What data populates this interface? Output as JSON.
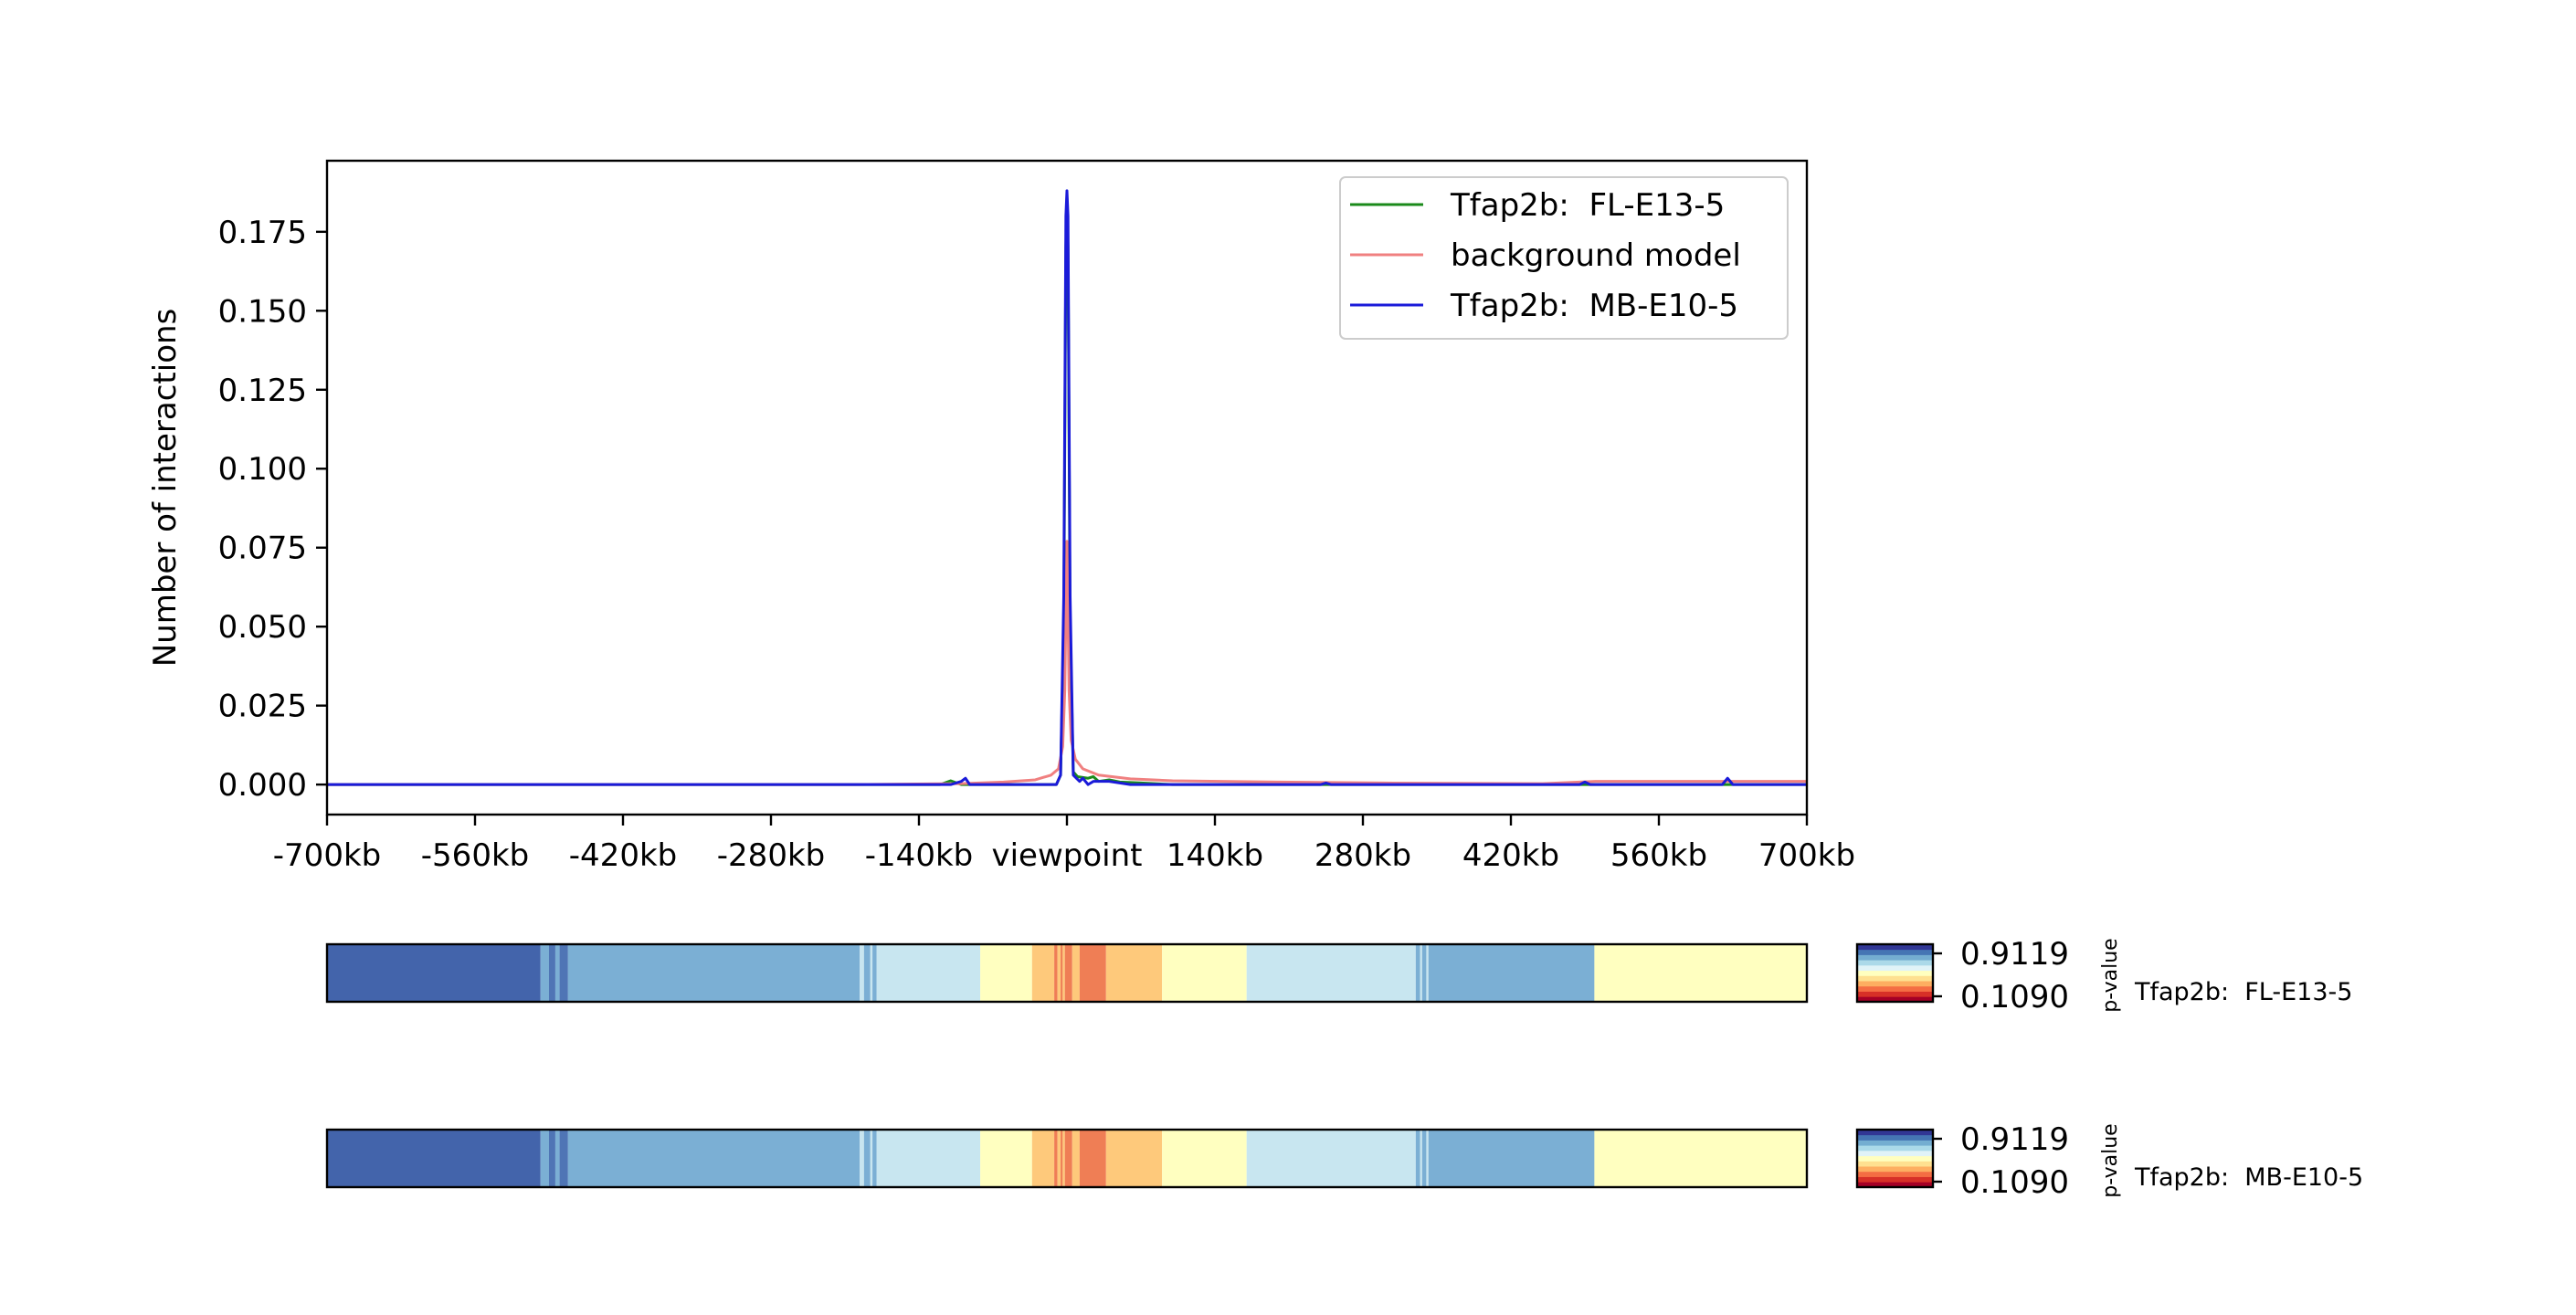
{
  "chart_data": [
    {
      "type": "line",
      "title": "",
      "ylabel": "Number of interactions",
      "xlabel": "",
      "xlim": [
        -700,
        700
      ],
      "ylim": [
        -0.0095,
        0.1975
      ],
      "x_ticks": [
        {
          "value": -700,
          "label": "-700kb"
        },
        {
          "value": -560,
          "label": "-560kb"
        },
        {
          "value": -420,
          "label": "-420kb"
        },
        {
          "value": -280,
          "label": "-280kb"
        },
        {
          "value": -140,
          "label": "-140kb"
        },
        {
          "value": 0,
          "label": "viewpoint"
        },
        {
          "value": 140,
          "label": "140kb"
        },
        {
          "value": 280,
          "label": "280kb"
        },
        {
          "value": 420,
          "label": "420kb"
        },
        {
          "value": 560,
          "label": "560kb"
        },
        {
          "value": 700,
          "label": "700kb"
        }
      ],
      "y_ticks": [
        {
          "value": 0.0,
          "label": "0.000"
        },
        {
          "value": 0.025,
          "label": "0.025"
        },
        {
          "value": 0.05,
          "label": "0.050"
        },
        {
          "value": 0.075,
          "label": "0.075"
        },
        {
          "value": 0.1,
          "label": "0.100"
        },
        {
          "value": 0.125,
          "label": "0.125"
        },
        {
          "value": 0.15,
          "label": "0.150"
        },
        {
          "value": 0.175,
          "label": "0.175"
        }
      ],
      "grid": false,
      "legend_position": "top-right",
      "series": [
        {
          "name": "Tfap2b:  FL-E13-5",
          "color": "#1a8a1a",
          "points": [
            [
              -700,
              0
            ],
            [
              -120,
              0
            ],
            [
              -110,
              0.0012
            ],
            [
              -100,
              0
            ],
            [
              -60,
              0
            ],
            [
              -10,
              0
            ],
            [
              -6,
              0.003
            ],
            [
              -3,
              0.05
            ],
            [
              -1,
              0.17
            ],
            [
              0,
              0.186
            ],
            [
              1,
              0.17
            ],
            [
              3,
              0.05
            ],
            [
              6,
              0.004
            ],
            [
              10,
              0.0025
            ],
            [
              20,
              0.002
            ],
            [
              25,
              0.0025
            ],
            [
              30,
              0.001
            ],
            [
              40,
              0.0015
            ],
            [
              50,
              0.0008
            ],
            [
              70,
              0.0005
            ],
            [
              100,
              0
            ],
            [
              700,
              0
            ]
          ]
        },
        {
          "name": "background model",
          "color": "#f08080",
          "points": [
            [
              -700,
              0
            ],
            [
              -200,
              0
            ],
            [
              -100,
              0.0003
            ],
            [
              -60,
              0.0008
            ],
            [
              -30,
              0.0015
            ],
            [
              -15,
              0.003
            ],
            [
              -8,
              0.005
            ],
            [
              -4,
              0.012
            ],
            [
              -2,
              0.03
            ],
            [
              0,
              0.077
            ],
            [
              2,
              0.03
            ],
            [
              4,
              0.014
            ],
            [
              8,
              0.008
            ],
            [
              15,
              0.005
            ],
            [
              30,
              0.003
            ],
            [
              60,
              0.0018
            ],
            [
              100,
              0.0012
            ],
            [
              200,
              0.0008
            ],
            [
              300,
              0.0005
            ],
            [
              450,
              0.0003
            ],
            [
              500,
              0.001
            ],
            [
              700,
              0.001
            ]
          ]
        },
        {
          "name": "Tfap2b:  MB-E10-5",
          "color": "#1a1ad9",
          "points": [
            [
              -700,
              0
            ],
            [
              -110,
              0
            ],
            [
              -100,
              0.001
            ],
            [
              -96,
              0.002
            ],
            [
              -92,
              0
            ],
            [
              -60,
              0
            ],
            [
              -10,
              0
            ],
            [
              -6,
              0.003
            ],
            [
              -3,
              0.06
            ],
            [
              -1,
              0.18
            ],
            [
              0,
              0.188
            ],
            [
              1,
              0.18
            ],
            [
              3,
              0.06
            ],
            [
              6,
              0.003
            ],
            [
              12,
              0.001
            ],
            [
              15,
              0.002
            ],
            [
              20,
              0
            ],
            [
              25,
              0.001
            ],
            [
              40,
              0.001
            ],
            [
              60,
              0
            ],
            [
              240,
              0
            ],
            [
              245,
              0.0005
            ],
            [
              250,
              0
            ],
            [
              485,
              0
            ],
            [
              490,
              0.0008
            ],
            [
              495,
              0
            ],
            [
              620,
              0
            ],
            [
              625,
              0.002
            ],
            [
              630,
              0
            ],
            [
              700,
              0
            ]
          ]
        }
      ]
    },
    {
      "type": "heatmap",
      "name": "Tfap2b:  FL-E13-5",
      "colorbar_ticks": [
        "0.9119",
        "0.1090"
      ],
      "colorbar_label": "p-value",
      "colorbar_colors": [
        "#a50026",
        "#d73027",
        "#f46d43",
        "#fdae61",
        "#fee090",
        "#ffffbf",
        "#e0f3f8",
        "#abd9e9",
        "#74add1",
        "#4575b4",
        "#313695"
      ],
      "segments": [
        {
          "start": -700,
          "end": -498,
          "color": "#4364ab"
        },
        {
          "start": -498,
          "end": -490,
          "color": "#7bafd4"
        },
        {
          "start": -490,
          "end": -484,
          "color": "#4f75b5"
        },
        {
          "start": -484,
          "end": -480,
          "color": "#7bafd4"
        },
        {
          "start": -480,
          "end": -472,
          "color": "#4f75b5"
        },
        {
          "start": -472,
          "end": -196,
          "color": "#7bafd4"
        },
        {
          "start": -196,
          "end": -192,
          "color": "#c8e6f0"
        },
        {
          "start": -192,
          "end": -186,
          "color": "#7bafd4"
        },
        {
          "start": -186,
          "end": -184,
          "color": "#c8e6f0"
        },
        {
          "start": -184,
          "end": -180,
          "color": "#7bafd4"
        },
        {
          "start": -180,
          "end": -82,
          "color": "#c8e6f0"
        },
        {
          "start": -82,
          "end": -33,
          "color": "#ffffc0"
        },
        {
          "start": -33,
          "end": -12,
          "color": "#fec97b"
        },
        {
          "start": -12,
          "end": -9,
          "color": "#ef7e55"
        },
        {
          "start": -9,
          "end": -6,
          "color": "#fec97b"
        },
        {
          "start": -6,
          "end": -4,
          "color": "#ef7e55"
        },
        {
          "start": -4,
          "end": -2,
          "color": "#fec97b"
        },
        {
          "start": -2,
          "end": 5,
          "color": "#ef7e55"
        },
        {
          "start": 5,
          "end": 12,
          "color": "#fec97b"
        },
        {
          "start": 12,
          "end": 37,
          "color": "#ef7e55"
        },
        {
          "start": 37,
          "end": 90,
          "color": "#fec97b"
        },
        {
          "start": 90,
          "end": 170,
          "color": "#ffffc0"
        },
        {
          "start": 170,
          "end": 330,
          "color": "#c8e6f0"
        },
        {
          "start": 330,
          "end": 334,
          "color": "#7bafd4"
        },
        {
          "start": 334,
          "end": 336,
          "color": "#c8e6f0"
        },
        {
          "start": 336,
          "end": 340,
          "color": "#7bafd4"
        },
        {
          "start": 340,
          "end": 342,
          "color": "#c8e6f0"
        },
        {
          "start": 342,
          "end": 499,
          "color": "#7bafd4"
        },
        {
          "start": 499,
          "end": 700,
          "color": "#ffffc0"
        }
      ]
    },
    {
      "type": "heatmap",
      "name": "Tfap2b:  MB-E10-5",
      "colorbar_ticks": [
        "0.9119",
        "0.1090"
      ],
      "colorbar_label": "p-value",
      "colorbar_colors": [
        "#a50026",
        "#d73027",
        "#f46d43",
        "#fdae61",
        "#fee090",
        "#ffffbf",
        "#e0f3f8",
        "#abd9e9",
        "#74add1",
        "#4575b4",
        "#313695"
      ],
      "segments": [
        {
          "start": -700,
          "end": -498,
          "color": "#4364ab"
        },
        {
          "start": -498,
          "end": -490,
          "color": "#7bafd4"
        },
        {
          "start": -490,
          "end": -484,
          "color": "#4f75b5"
        },
        {
          "start": -484,
          "end": -480,
          "color": "#7bafd4"
        },
        {
          "start": -480,
          "end": -472,
          "color": "#4f75b5"
        },
        {
          "start": -472,
          "end": -196,
          "color": "#7bafd4"
        },
        {
          "start": -196,
          "end": -192,
          "color": "#c8e6f0"
        },
        {
          "start": -192,
          "end": -186,
          "color": "#7bafd4"
        },
        {
          "start": -186,
          "end": -184,
          "color": "#c8e6f0"
        },
        {
          "start": -184,
          "end": -180,
          "color": "#7bafd4"
        },
        {
          "start": -180,
          "end": -82,
          "color": "#c8e6f0"
        },
        {
          "start": -82,
          "end": -33,
          "color": "#ffffc0"
        },
        {
          "start": -33,
          "end": -12,
          "color": "#fec97b"
        },
        {
          "start": -12,
          "end": -9,
          "color": "#ef7e55"
        },
        {
          "start": -9,
          "end": -6,
          "color": "#fec97b"
        },
        {
          "start": -6,
          "end": -4,
          "color": "#ef7e55"
        },
        {
          "start": -4,
          "end": -2,
          "color": "#fec97b"
        },
        {
          "start": -2,
          "end": 5,
          "color": "#ef7e55"
        },
        {
          "start": 5,
          "end": 12,
          "color": "#fec97b"
        },
        {
          "start": 12,
          "end": 37,
          "color": "#ef7e55"
        },
        {
          "start": 37,
          "end": 90,
          "color": "#fec97b"
        },
        {
          "start": 90,
          "end": 170,
          "color": "#ffffc0"
        },
        {
          "start": 170,
          "end": 330,
          "color": "#c8e6f0"
        },
        {
          "start": 330,
          "end": 334,
          "color": "#7bafd4"
        },
        {
          "start": 334,
          "end": 336,
          "color": "#c8e6f0"
        },
        {
          "start": 336,
          "end": 340,
          "color": "#7bafd4"
        },
        {
          "start": 340,
          "end": 342,
          "color": "#c8e6f0"
        },
        {
          "start": 342,
          "end": 499,
          "color": "#7bafd4"
        },
        {
          "start": 499,
          "end": 700,
          "color": "#ffffc0"
        }
      ]
    }
  ]
}
